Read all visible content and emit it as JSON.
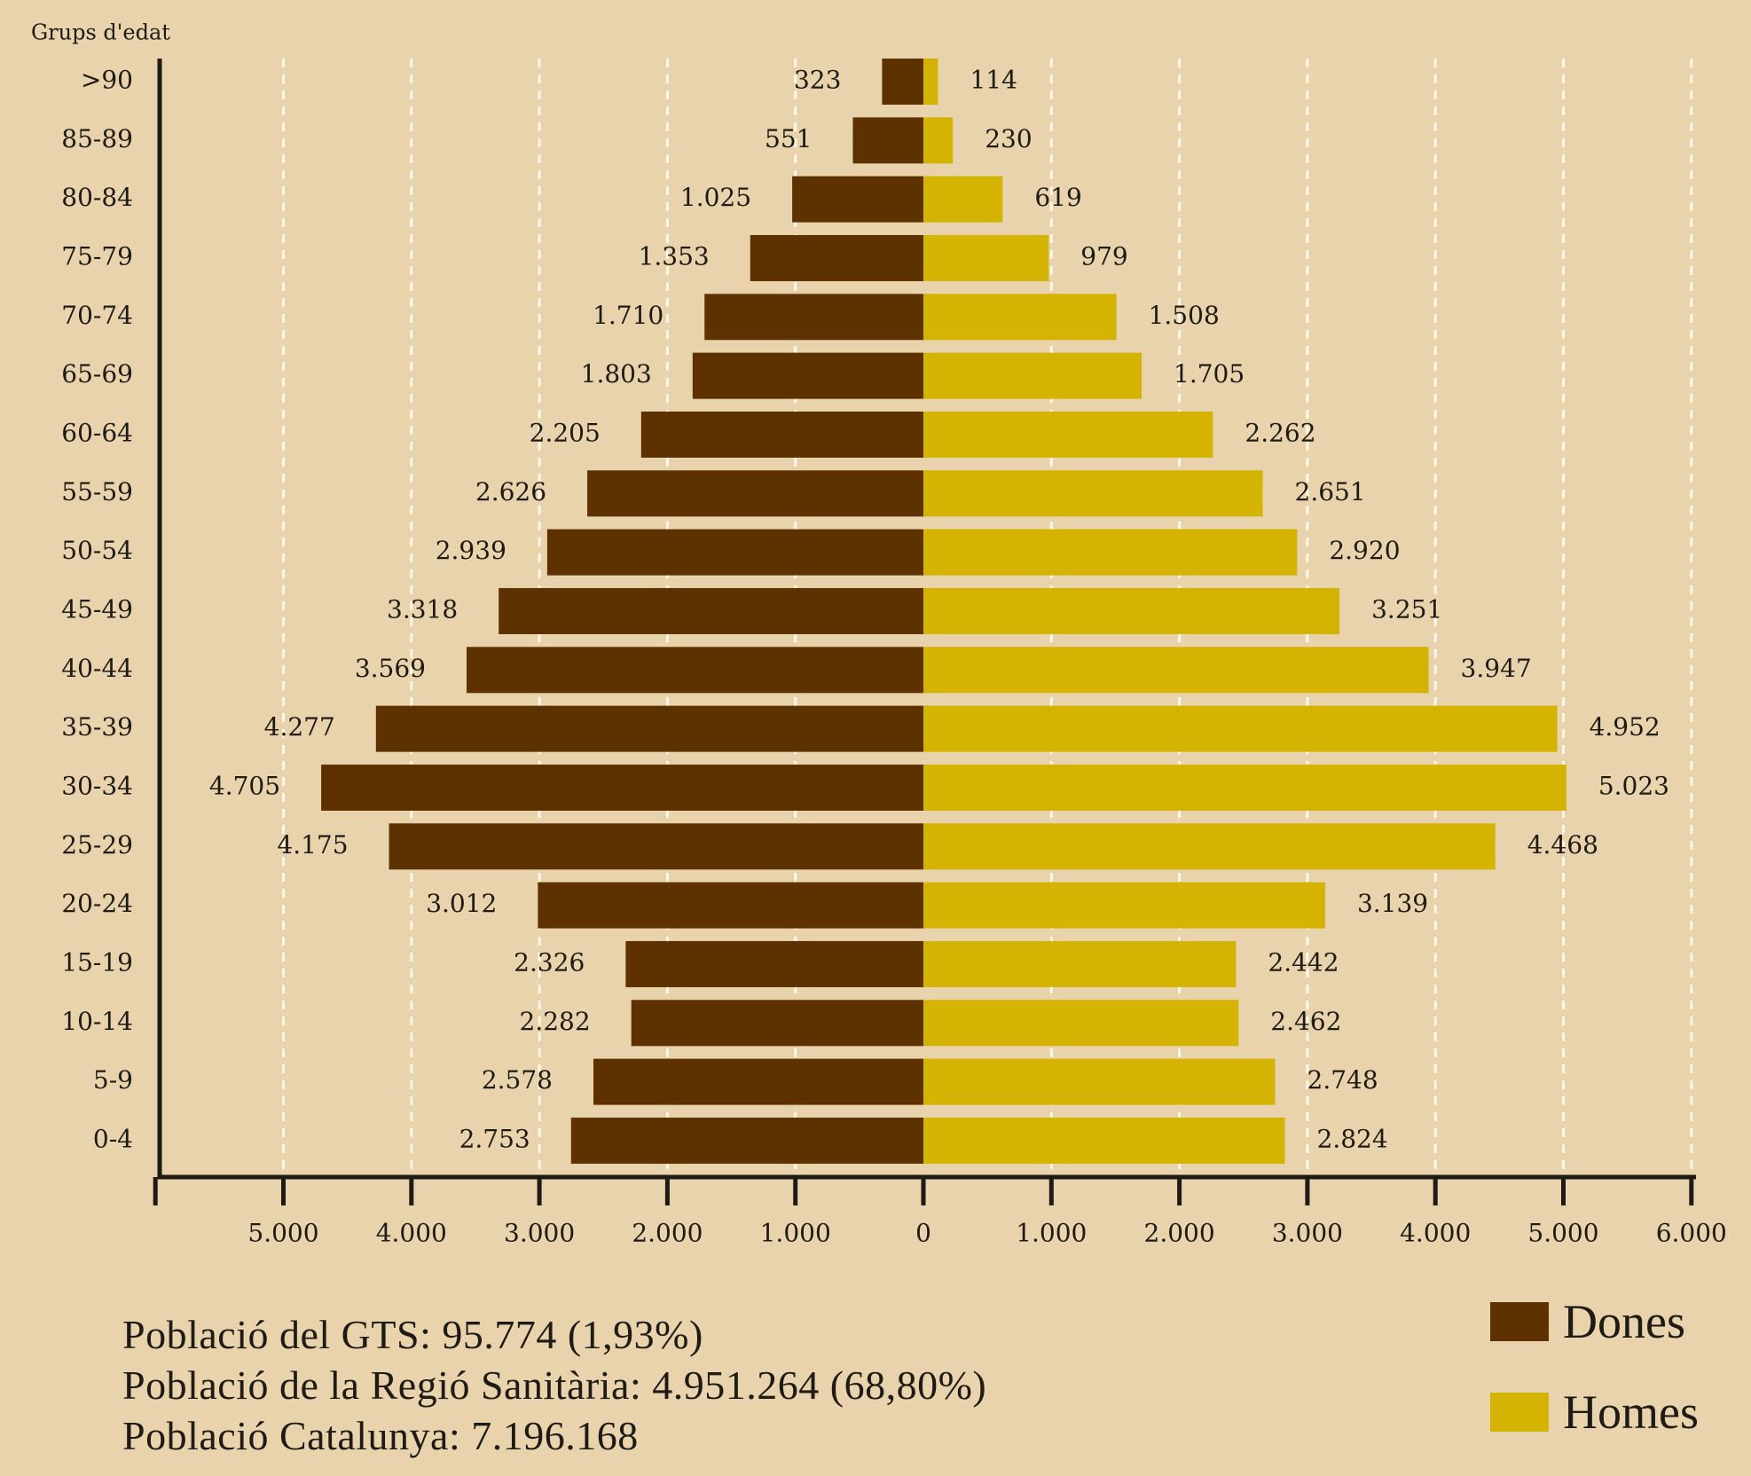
{
  "chart_data": {
    "type": "bar",
    "orientation": "horizontal",
    "subtype": "population-pyramid",
    "ylabel": "Grups d'edat",
    "categories": [
      ">90",
      "85-89",
      "80-84",
      "75-79",
      "70-74",
      "65-69",
      "60-64",
      "55-59",
      "50-54",
      "45-49",
      "40-44",
      "35-39",
      "30-34",
      "25-29",
      "20-24",
      "15-19",
      "10-14",
      "5-9",
      "0-4"
    ],
    "series": [
      {
        "name": "Dones",
        "side": "left",
        "color": "#5e3200",
        "values": [
          323,
          551,
          1025,
          1353,
          1710,
          1803,
          2205,
          2626,
          2939,
          3318,
          3569,
          4277,
          4705,
          4175,
          3012,
          2326,
          2282,
          2578,
          2753
        ],
        "labels": [
          "323",
          "551",
          "1.025",
          "1.353",
          "1.710",
          "1.803",
          "2.205",
          "2.626",
          "2.939",
          "3.318",
          "3.569",
          "4.277",
          "4.705",
          "4.175",
          "3.012",
          "2.326",
          "2.282",
          "2.578",
          "2.753"
        ]
      },
      {
        "name": "Homes",
        "side": "right",
        "color": "#d4b303",
        "values": [
          114,
          230,
          619,
          979,
          1508,
          1705,
          2262,
          2651,
          2920,
          3251,
          3947,
          4952,
          5023,
          4468,
          3139,
          2442,
          2462,
          2748,
          2824
        ],
        "labels": [
          "114",
          "230",
          "619",
          "979",
          "1.508",
          "1.705",
          "2.262",
          "2.651",
          "2.920",
          "3.251",
          "3.947",
          "4.952",
          "5.023",
          "4.468",
          "3.139",
          "2.442",
          "2.462",
          "2.748",
          "2.824"
        ]
      }
    ],
    "xlim_left": [
      0,
      6000
    ],
    "xlim_right": [
      0,
      6000
    ],
    "xticks_left": [
      "5.000",
      "4.000",
      "3.000",
      "2.000",
      "1.000"
    ],
    "xticks_right": [
      "0",
      "1.000",
      "2.000",
      "3.000",
      "4.000",
      "5.000",
      "6.000"
    ],
    "grid": true,
    "legend_position": "bottom-right"
  },
  "footer": {
    "line1": "Població del GTS: 95.774 (1,93%)",
    "line2": "Població de la Regió Sanitària: 4.951.264 (68,80%)",
    "line3": "Població Catalunya: 7.196.168"
  },
  "legend": {
    "dones": "Dones",
    "homes": "Homes"
  },
  "colors": {
    "background": "#e8d3ac",
    "dones": "#5e3200",
    "homes": "#d4b303",
    "grid": "#fff8e6",
    "axis": "#1e1a14"
  }
}
